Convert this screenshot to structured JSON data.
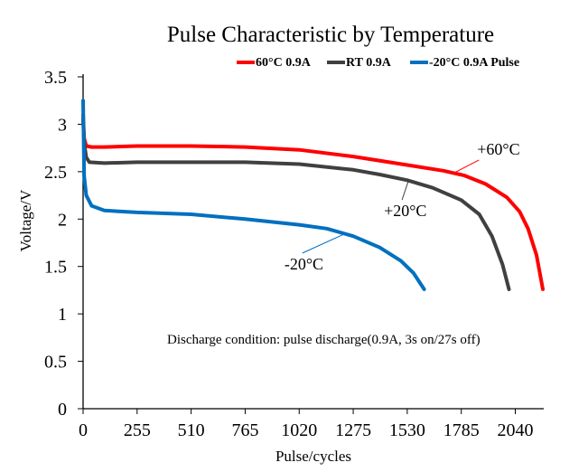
{
  "chart_data": {
    "type": "line",
    "title": "Pulse Characteristic by Temperature",
    "xlabel": "Pulse/cycles",
    "ylabel": "Voltage/V",
    "xlim": [
      0,
      2170
    ],
    "ylim": [
      0,
      3.5
    ],
    "xticks": [
      0,
      255,
      510,
      765,
      1020,
      1275,
      1530,
      1785,
      2040
    ],
    "yticks": [
      0,
      0.5,
      1,
      1.5,
      2,
      2.5,
      3,
      3.5
    ],
    "grid": false,
    "legend_position": "top-right",
    "colors": {
      "hot": "#ff0000",
      "room": "#404040",
      "cold": "#0070c0"
    },
    "series": [
      {
        "name": "60°C 0.9A",
        "color": "#ff0000",
        "points": [
          [
            0,
            3.1
          ],
          [
            5,
            2.85
          ],
          [
            15,
            2.77
          ],
          [
            40,
            2.76
          ],
          [
            100,
            2.76
          ],
          [
            255,
            2.77
          ],
          [
            510,
            2.77
          ],
          [
            765,
            2.76
          ],
          [
            1020,
            2.73
          ],
          [
            1275,
            2.66
          ],
          [
            1530,
            2.57
          ],
          [
            1700,
            2.51
          ],
          [
            1800,
            2.46
          ],
          [
            1900,
            2.37
          ],
          [
            2000,
            2.23
          ],
          [
            2060,
            2.08
          ],
          [
            2100,
            1.9
          ],
          [
            2140,
            1.62
          ],
          [
            2170,
            1.26
          ]
        ]
      },
      {
        "name": "RT 0.9A",
        "color": "#404040",
        "points": [
          [
            0,
            3.05
          ],
          [
            5,
            2.8
          ],
          [
            15,
            2.65
          ],
          [
            30,
            2.6
          ],
          [
            100,
            2.59
          ],
          [
            255,
            2.6
          ],
          [
            510,
            2.6
          ],
          [
            765,
            2.6
          ],
          [
            1020,
            2.58
          ],
          [
            1275,
            2.52
          ],
          [
            1400,
            2.47
          ],
          [
            1530,
            2.41
          ],
          [
            1650,
            2.33
          ],
          [
            1785,
            2.2
          ],
          [
            1870,
            2.05
          ],
          [
            1930,
            1.82
          ],
          [
            1980,
            1.52
          ],
          [
            2010,
            1.26
          ]
        ]
      },
      {
        "name": "-20°C 0.9A Pulse",
        "color": "#0070c0",
        "points": [
          [
            0,
            3.25
          ],
          [
            5,
            2.45
          ],
          [
            15,
            2.25
          ],
          [
            40,
            2.14
          ],
          [
            100,
            2.09
          ],
          [
            255,
            2.07
          ],
          [
            510,
            2.05
          ],
          [
            765,
            2.0
          ],
          [
            1020,
            1.94
          ],
          [
            1150,
            1.9
          ],
          [
            1275,
            1.82
          ],
          [
            1400,
            1.7
          ],
          [
            1500,
            1.56
          ],
          [
            1560,
            1.43
          ],
          [
            1610,
            1.26
          ]
        ]
      }
    ],
    "annotations": [
      {
        "text": "+60°C",
        "label_x": 1860,
        "label_y": 2.68,
        "point_x": 1745,
        "point_y": 2.48,
        "color": "#ff0000"
      },
      {
        "text": "+20°C",
        "label_x": 1420,
        "label_y": 2.03,
        "point_x": 1535,
        "point_y": 2.4,
        "color": "#404040"
      },
      {
        "text": "-20°C",
        "label_x": 950,
        "label_y": 1.47,
        "point_x": 1240,
        "point_y": 1.85,
        "color": "#0070c0"
      }
    ],
    "note": "Discharge condition: pulse discharge(0.9A, 3s on/27s off)"
  }
}
